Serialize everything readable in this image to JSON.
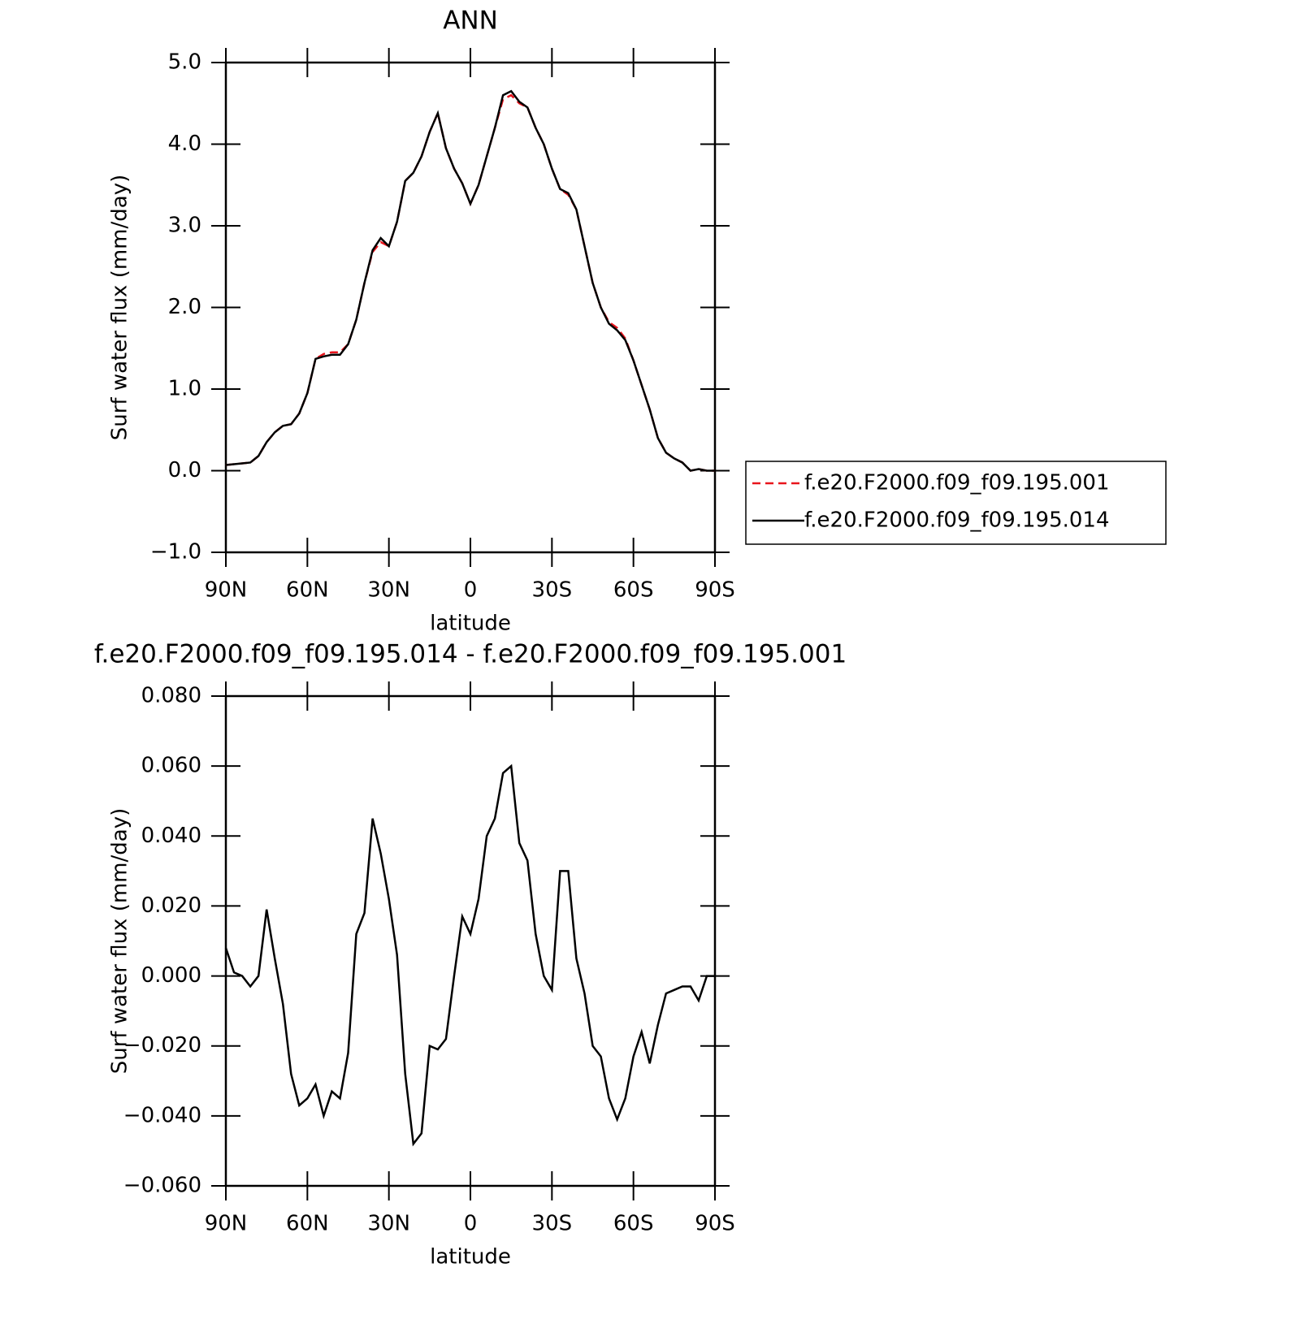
{
  "chart_data": [
    {
      "type": "line",
      "title": "ANN",
      "xlabel": "latitude",
      "ylabel": "Surf water flux (mm/day)",
      "xlim": [
        90,
        -90
      ],
      "xticks": [
        {
          "value": 90,
          "label": "90N"
        },
        {
          "value": 60,
          "label": "60N"
        },
        {
          "value": 30,
          "label": "30N"
        },
        0,
        {
          "value": -30,
          "label": "30S"
        },
        {
          "value": -60,
          "label": "60S"
        },
        {
          "value": -90,
          "label": "90S"
        }
      ],
      "ylim": [
        -1,
        5
      ],
      "yticks": [
        {
          "value": -1,
          "label": "−1.0"
        },
        {
          "value": 0,
          "label": "0.0"
        },
        {
          "value": 1,
          "label": "1.0"
        },
        {
          "value": 2,
          "label": "2.0"
        },
        {
          "value": 3,
          "label": "3.0"
        },
        {
          "value": 4,
          "label": "4.0"
        },
        {
          "value": 5,
          "label": "5.0"
        }
      ],
      "legend": "right",
      "x": [
        90,
        87,
        84,
        81,
        78,
        75,
        72,
        69,
        66,
        63,
        60,
        57,
        54,
        51,
        48,
        45,
        42,
        39,
        36,
        33,
        30,
        27,
        24,
        21,
        18,
        15,
        12,
        9,
        6,
        3,
        0,
        -3,
        -6,
        -9,
        -12,
        -15,
        -18,
        -21,
        -24,
        -27,
        -30,
        -33,
        -36,
        -39,
        -42,
        -45,
        -48,
        -51,
        -54,
        -57,
        -60,
        -63,
        -66,
        -69,
        -72,
        -75,
        -78,
        -81,
        -84,
        -87,
        -90
      ],
      "series": [
        {
          "name": "f.e20.F2000.f09_f09.195.001",
          "color": "#e8141c",
          "dashed": true,
          "values": [
            0.07,
            0.08,
            0.09,
            0.1,
            0.18,
            0.35,
            0.47,
            0.55,
            0.57,
            0.7,
            0.95,
            1.37,
            1.43,
            1.45,
            1.45,
            1.55,
            1.85,
            2.3,
            2.68,
            2.8,
            2.75,
            3.05,
            3.55,
            3.65,
            3.85,
            4.15,
            4.38,
            3.95,
            3.7,
            3.52,
            3.27,
            3.5,
            3.85,
            4.2,
            4.55,
            4.6,
            4.5,
            4.45,
            4.2,
            4.0,
            3.7,
            3.45,
            3.38,
            3.2,
            2.75,
            2.3,
            2.0,
            1.82,
            1.75,
            1.62,
            1.35,
            1.05,
            0.75,
            0.4,
            0.22,
            0.15,
            0.1,
            0.0,
            0.02,
            0.0,
            0.0
          ]
        },
        {
          "name": "f.e20.F2000.f09_f09.195.014",
          "color": "#000000",
          "dashed": false,
          "values": [
            0.07,
            0.08,
            0.09,
            0.1,
            0.18,
            0.35,
            0.47,
            0.55,
            0.57,
            0.7,
            0.95,
            1.37,
            1.4,
            1.42,
            1.42,
            1.55,
            1.85,
            2.3,
            2.7,
            2.85,
            2.75,
            3.05,
            3.55,
            3.65,
            3.85,
            4.15,
            4.38,
            3.95,
            3.7,
            3.52,
            3.27,
            3.5,
            3.85,
            4.2,
            4.6,
            4.65,
            4.52,
            4.45,
            4.2,
            4.0,
            3.7,
            3.45,
            3.4,
            3.2,
            2.75,
            2.3,
            2.0,
            1.8,
            1.72,
            1.6,
            1.35,
            1.05,
            0.75,
            0.4,
            0.22,
            0.15,
            0.1,
            0.0,
            0.02,
            0.0,
            0.0
          ]
        }
      ]
    },
    {
      "type": "line",
      "title": "f.e20.F2000.f09_f09.195.014 - f.e20.F2000.f09_f09.195.001",
      "xlabel": "latitude",
      "ylabel": "Surf water flux (mm/day)",
      "xlim": [
        90,
        -90
      ],
      "xticks": [
        {
          "value": 90,
          "label": "90N"
        },
        {
          "value": 60,
          "label": "60N"
        },
        {
          "value": 30,
          "label": "30N"
        },
        0,
        {
          "value": -30,
          "label": "30S"
        },
        {
          "value": -60,
          "label": "60S"
        },
        {
          "value": -90,
          "label": "90S"
        }
      ],
      "ylim": [
        -0.06,
        0.08
      ],
      "yticks": [
        {
          "value": -0.06,
          "label": "−0.060"
        },
        {
          "value": -0.04,
          "label": "−0.040"
        },
        {
          "value": -0.02,
          "label": "−0.020"
        },
        {
          "value": 0,
          "label": "0.000"
        },
        {
          "value": 0.02,
          "label": "0.020"
        },
        {
          "value": 0.04,
          "label": "0.040"
        },
        {
          "value": 0.06,
          "label": "0.060"
        },
        {
          "value": 0.08,
          "label": "0.080"
        }
      ],
      "x": [
        90,
        87,
        84,
        81,
        78,
        75,
        72,
        69,
        66,
        63,
        60,
        57,
        54,
        51,
        48,
        45,
        42,
        39,
        36,
        33,
        30,
        27,
        24,
        21,
        18,
        15,
        12,
        9,
        6,
        3,
        0,
        -3,
        -6,
        -9,
        -12,
        -15,
        -18,
        -21,
        -24,
        -27,
        -30,
        -33,
        -36,
        -39,
        -42,
        -45,
        -48,
        -51,
        -54,
        -57,
        -60,
        -63,
        -66,
        -69,
        -72,
        -75,
        -78,
        -81,
        -84,
        -87,
        -90
      ],
      "series": [
        {
          "color": "#000000",
          "dashed": false,
          "values": [
            0.008,
            0.001,
            0.0,
            -0.003,
            0.0,
            0.019,
            0.005,
            -0.008,
            -0.028,
            -0.037,
            -0.035,
            -0.031,
            -0.04,
            -0.033,
            -0.035,
            -0.022,
            0.012,
            0.018,
            0.045,
            0.035,
            0.022,
            0.006,
            -0.028,
            -0.048,
            -0.045,
            -0.02,
            -0.021,
            -0.018,
            0.0,
            0.017,
            0.012,
            0.022,
            0.04,
            0.045,
            0.058,
            0.06,
            0.038,
            0.033,
            0.012,
            0.0,
            -0.004,
            0.03,
            0.03,
            0.005,
            -0.005,
            -0.02,
            -0.023,
            -0.035,
            -0.041,
            -0.035,
            -0.023,
            -0.016,
            -0.025,
            -0.014,
            -0.005,
            -0.004,
            -0.003,
            -0.003,
            -0.007,
            0.0,
            0.0
          ]
        }
      ]
    }
  ]
}
